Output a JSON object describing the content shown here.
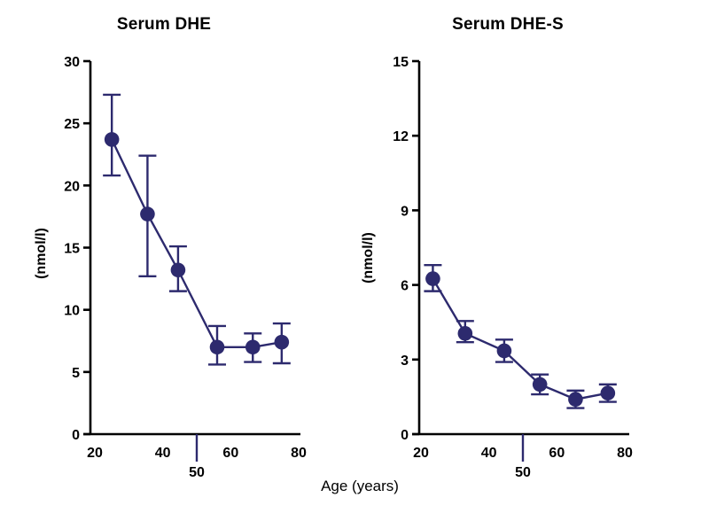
{
  "figure": {
    "xlabel": "Age (years)",
    "background_color": "#ffffff",
    "accent_color": "#2d2a6e",
    "axis_color": "#000000"
  },
  "chart_data": [
    {
      "type": "line",
      "title": "Serum DHE",
      "ylabel": "(nmol/l)",
      "x": [
        25,
        35.5,
        44.5,
        56,
        66.5,
        75
      ],
      "y": [
        23.7,
        17.7,
        13.2,
        7.0,
        7.0,
        7.4
      ],
      "err_up": [
        3.6,
        4.7,
        1.9,
        1.7,
        1.1,
        1.5
      ],
      "err_down": [
        2.9,
        5.0,
        1.7,
        1.4,
        1.2,
        1.7
      ],
      "ylim": [
        0,
        30
      ],
      "yticks": [
        0,
        5,
        10,
        15,
        20,
        25,
        30
      ],
      "xticks": [
        20,
        40,
        60,
        80
      ],
      "special_xtick": 50,
      "marker": "filled-circle",
      "grid": false,
      "legend": null
    },
    {
      "type": "line",
      "title": "Serum DHE-S",
      "ylabel": "(nmol/l)",
      "x": [
        23.5,
        33,
        44.5,
        55,
        65.5,
        75
      ],
      "y": [
        6.25,
        4.05,
        3.35,
        2.0,
        1.4,
        1.65
      ],
      "err_up": [
        0.55,
        0.5,
        0.45,
        0.4,
        0.35,
        0.35
      ],
      "err_down": [
        0.5,
        0.35,
        0.45,
        0.4,
        0.35,
        0.35
      ],
      "ylim": [
        0,
        15
      ],
      "yticks": [
        0,
        3,
        6,
        9,
        12,
        15
      ],
      "xticks": [
        20,
        40,
        60,
        80
      ],
      "special_xtick": 50,
      "marker": "filled-circle",
      "grid": false,
      "legend": null
    }
  ]
}
